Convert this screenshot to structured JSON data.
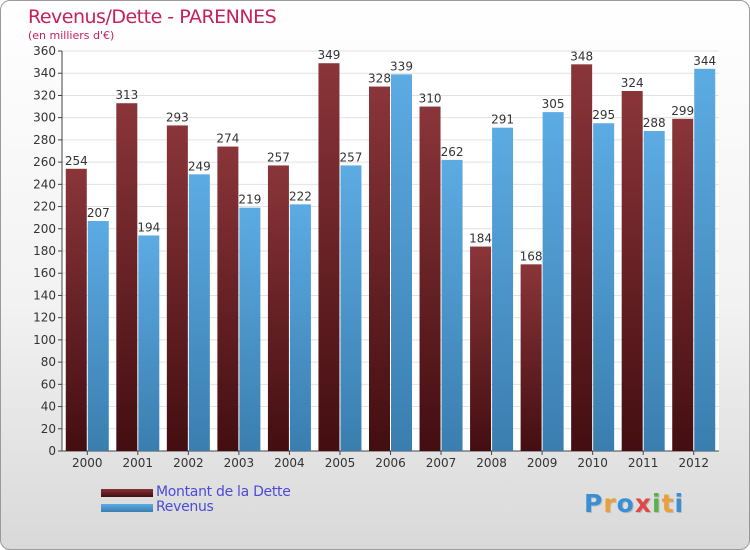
{
  "chart_data": {
    "type": "bar",
    "title": "Revenus/Dette - PARENNES",
    "subtitle": "(en milliers d'€)",
    "categories": [
      "2000",
      "2001",
      "2002",
      "2003",
      "2004",
      "2005",
      "2006",
      "2007",
      "2008",
      "2009",
      "2010",
      "2011",
      "2012"
    ],
    "series": [
      {
        "name": "Montant de la Dette",
        "color": "#7a1a1e",
        "values": [
          254,
          313,
          293,
          274,
          257,
          349,
          328,
          310,
          184,
          168,
          348,
          324,
          299
        ]
      },
      {
        "name": "Revenus",
        "color": "#4aa2e0",
        "values": [
          207,
          194,
          249,
          219,
          222,
          257,
          339,
          262,
          291,
          305,
          295,
          288,
          344
        ]
      }
    ],
    "ylim": [
      0,
      360
    ],
    "ytick_step": 20,
    "yticks": [
      "0",
      "20",
      "40",
      "60",
      "80",
      "100",
      "120",
      "140",
      "160",
      "180",
      "200",
      "220",
      "240",
      "260",
      "280",
      "300",
      "320",
      "340",
      "360"
    ],
    "grid": true,
    "legend_position": "bottom-left",
    "xlabel": "",
    "ylabel": ""
  },
  "logo": {
    "letters": [
      {
        "char": "P",
        "color": "#3a8fd4"
      },
      {
        "char": "r",
        "color": "#e8a13a"
      },
      {
        "char": "o",
        "color": "#3a8fd4"
      },
      {
        "char": "x",
        "color": "#e04848"
      },
      {
        "char": "i",
        "color": "#5ab04a"
      },
      {
        "char": "t",
        "color": "#e8a13a"
      },
      {
        "char": "i",
        "color": "#3a8fd4"
      }
    ]
  }
}
